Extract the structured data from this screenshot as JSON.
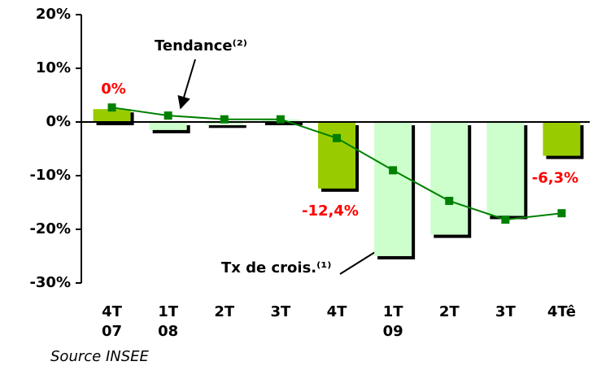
{
  "chart_data": {
    "type": "bar",
    "categories": [
      "4T\n07",
      "1T\n08",
      "2T",
      "3T",
      "4T",
      "1T\n09",
      "2T",
      "3T",
      "4Tê"
    ],
    "series": [
      {
        "type": "bar",
        "colors": [
          "#99cc00",
          "#ccffcc",
          "#ccffcc",
          "#ccffcc",
          "#99cc00",
          "#ccffcc",
          "#ccffcc",
          "#ccffcc",
          "#99cc00"
        ],
        "values": [
          2.4,
          -1.5,
          -0.5,
          0.5,
          -12.4,
          -25,
          -21,
          -17.5,
          -6.3
        ],
        "value_labels": [
          null,
          null,
          null,
          null,
          "-12,4%",
          null,
          null,
          null,
          "-6,3%"
        ]
      },
      {
        "type": "line",
        "color": "#008000",
        "values": [
          2.7,
          1.2,
          0.5,
          0.5,
          -3,
          -9,
          -14.7,
          -18.2,
          -17
        ]
      }
    ],
    "ylim": [
      -30,
      20
    ],
    "yticks": [
      {
        "value": 20,
        "label": "20%"
      },
      {
        "value": 10,
        "label": "10%"
      },
      {
        "value": 0,
        "label": "0%"
      },
      {
        "value": -10,
        "label": "-10%"
      },
      {
        "value": -20,
        "label": "-20%"
      },
      {
        "value": -30,
        "label": "-30%"
      }
    ],
    "annotations": [
      "Tendance⁽²⁾",
      "Tx de crois.⁽¹⁾",
      "0%"
    ],
    "source": "Source INSEE"
  }
}
